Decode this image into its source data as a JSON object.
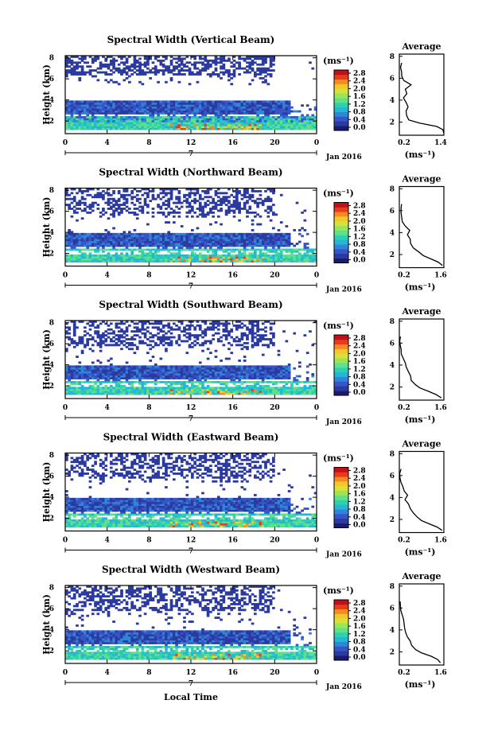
{
  "figure": {
    "xlabel": "Local Time",
    "date_label": "Jan 2016",
    "day_label": "7",
    "avg_title": "Average",
    "avg_unit": "(ms⁻¹)",
    "colorbar_unit": "(ms⁻¹)",
    "ylabel": "Height (km)"
  },
  "chart_data": [
    {
      "type": "heatmap",
      "title": "Spectral Width (Vertical Beam)",
      "x_ticks": [
        "0",
        "4",
        "8",
        "12",
        "16",
        "20",
        "0"
      ],
      "y_ticks": [
        "2",
        "4",
        "6",
        "8"
      ],
      "colorbar_ticks": [
        "0.0",
        "0.4",
        "0.8",
        "1.2",
        "1.6",
        "2.0",
        "2.4",
        "2.8"
      ],
      "avg_x_ticks": [
        "0.2",
        "1.4"
      ],
      "avg_y_ticks": [
        "2",
        "4",
        "6",
        "8"
      ],
      "avg_xlim": [
        0.2,
        1.4
      ],
      "avg_ylim": [
        0.8,
        8.2
      ],
      "average_profile": {
        "height": [
          1.0,
          1.3,
          1.6,
          1.9,
          2.2,
          2.6,
          3.0,
          3.4,
          3.8,
          4.2,
          4.6,
          5.0,
          5.4,
          5.8,
          6.2,
          6.6,
          7.0,
          7.4
        ],
        "width": [
          1.4,
          1.35,
          1.2,
          0.75,
          0.48,
          0.4,
          0.38,
          0.42,
          0.36,
          0.34,
          0.4,
          0.36,
          0.52,
          0.3,
          0.28,
          0.25,
          0.24,
          0.24
        ]
      }
    },
    {
      "type": "heatmap",
      "title": "Spectral Width (Northward Beam)",
      "x_ticks": [
        "0",
        "4",
        "8",
        "12",
        "16",
        "20",
        "0"
      ],
      "y_ticks": [
        "2",
        "4",
        "6",
        "8"
      ],
      "colorbar_ticks": [
        "0.0",
        "0.4",
        "0.8",
        "1.2",
        "1.6",
        "2.0",
        "2.4",
        "2.8"
      ],
      "avg_x_ticks": [
        "0.2",
        "1.6"
      ],
      "avg_y_ticks": [
        "2",
        "4",
        "6",
        "8"
      ],
      "avg_xlim": [
        0.2,
        1.6
      ],
      "avg_ylim": [
        0.8,
        8.2
      ],
      "average_profile": {
        "height": [
          1.0,
          1.3,
          1.6,
          1.9,
          2.2,
          2.6,
          3.0,
          3.4,
          3.8,
          4.2,
          4.6,
          5.0,
          5.4,
          5.8,
          6.2,
          6.6
        ],
        "width": [
          1.55,
          1.45,
          1.2,
          0.95,
          0.8,
          0.65,
          0.55,
          0.52,
          0.44,
          0.5,
          0.38,
          0.3,
          0.28,
          0.26,
          0.24,
          0.24
        ]
      }
    },
    {
      "type": "heatmap",
      "title": "Spectral Width (Southward Beam)",
      "x_ticks": [
        "0",
        "4",
        "8",
        "12",
        "16",
        "20",
        "0"
      ],
      "y_ticks": [
        "2",
        "4",
        "6",
        "8"
      ],
      "colorbar_ticks": [
        "0.0",
        "0.4",
        "0.8",
        "1.2",
        "1.6",
        "2.0",
        "2.4",
        "2.8"
      ],
      "avg_x_ticks": [
        "0.2",
        "1.6"
      ],
      "avg_y_ticks": [
        "2",
        "4",
        "6",
        "8"
      ],
      "avg_xlim": [
        0.2,
        1.6
      ],
      "avg_ylim": [
        0.8,
        8.2
      ],
      "average_profile": {
        "height": [
          1.0,
          1.3,
          1.6,
          1.9,
          2.2,
          2.6,
          3.0,
          3.4,
          3.8,
          4.2,
          4.6,
          5.0,
          5.4,
          5.8,
          6.2,
          6.6
        ],
        "width": [
          1.55,
          1.35,
          1.1,
          0.85,
          0.7,
          0.6,
          0.55,
          0.48,
          0.42,
          0.36,
          0.34,
          0.28,
          0.26,
          0.25,
          0.24,
          0.24
        ]
      }
    },
    {
      "type": "heatmap",
      "title": "Spectral Width (Eastward Beam)",
      "x_ticks": [
        "0",
        "4",
        "8",
        "12",
        "16",
        "20",
        "0"
      ],
      "y_ticks": [
        "2",
        "4",
        "6",
        "8"
      ],
      "colorbar_ticks": [
        "0.0",
        "0.4",
        "0.8",
        "1.2",
        "1.6",
        "2.0",
        "2.4",
        "2.8"
      ],
      "avg_x_ticks": [
        "0.2",
        "1.6"
      ],
      "avg_y_ticks": [
        "2",
        "4",
        "6",
        "8"
      ],
      "avg_xlim": [
        0.2,
        1.6
      ],
      "avg_ylim": [
        0.8,
        8.2
      ],
      "average_profile": {
        "height": [
          1.0,
          1.3,
          1.6,
          1.9,
          2.2,
          2.6,
          3.0,
          3.4,
          3.8,
          4.2,
          4.6,
          5.0,
          5.4,
          5.8,
          6.2,
          6.6
        ],
        "width": [
          1.55,
          1.4,
          1.15,
          0.9,
          0.75,
          0.62,
          0.55,
          0.48,
          0.4,
          0.46,
          0.35,
          0.3,
          0.27,
          0.25,
          0.24,
          0.24
        ]
      }
    },
    {
      "type": "heatmap",
      "title": "Spectral Width (Westward Beam)",
      "x_ticks": [
        "0",
        "4",
        "8",
        "12",
        "16",
        "20",
        "0"
      ],
      "y_ticks": [
        "2",
        "4",
        "6",
        "8"
      ],
      "colorbar_ticks": [
        "0.0",
        "0.4",
        "0.8",
        "1.2",
        "1.6",
        "2.0",
        "2.4",
        "2.8"
      ],
      "avg_x_ticks": [
        "0.2",
        "1.6"
      ],
      "avg_y_ticks": [
        "2",
        "4",
        "6",
        "8"
      ],
      "avg_xlim": [
        0.2,
        1.6
      ],
      "avg_ylim": [
        0.8,
        8.2
      ],
      "average_profile": {
        "height": [
          1.0,
          1.3,
          1.6,
          1.9,
          2.2,
          2.6,
          3.0,
          3.4,
          3.8,
          4.2,
          4.6,
          5.0,
          5.4,
          5.8,
          6.2,
          6.6
        ],
        "width": [
          1.5,
          1.4,
          1.2,
          0.9,
          0.72,
          0.6,
          0.52,
          0.45,
          0.4,
          0.36,
          0.33,
          0.3,
          0.27,
          0.25,
          0.24,
          0.24
        ]
      }
    }
  ],
  "colormap": [
    "#1a1a70",
    "#2b3a9e",
    "#3656c8",
    "#2f86d8",
    "#25b6d6",
    "#2fd0b0",
    "#5fe08a",
    "#9ce455",
    "#d6e23c",
    "#f5c62c",
    "#f58a22",
    "#e83a1c",
    "#c0101a"
  ]
}
